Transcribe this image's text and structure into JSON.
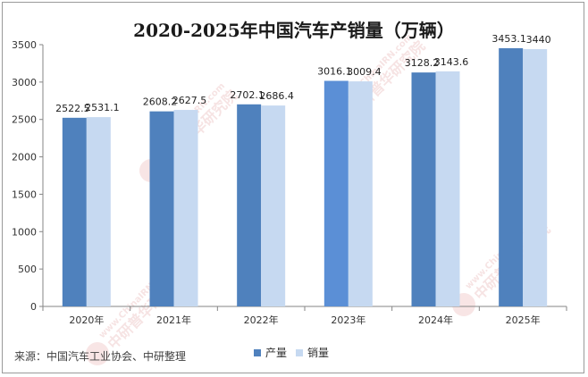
{
  "chart_data": {
    "type": "bar",
    "title": "2020-2025年中国汽车产销量（万辆）",
    "categories": [
      "2020年",
      "2021年",
      "2022年",
      "2023年",
      "2024年",
      "2025年"
    ],
    "series": [
      {
        "name": "产量",
        "values": [
          2522.5,
          2608.2,
          2702.1,
          3016.1,
          3128.2,
          3453.1
        ],
        "color": "#4f81bd"
      },
      {
        "name": "销量",
        "values": [
          2531.1,
          2627.5,
          2686.4,
          3009.4,
          3143.6,
          3440
        ],
        "color": "#c6d9f1"
      }
    ],
    "highlight_color": "#5b8fd6",
    "xlabel": "",
    "ylabel": "",
    "ylim": [
      0,
      3500
    ],
    "yticks": [
      0,
      500,
      1000,
      1500,
      2000,
      2500,
      3000,
      3500
    ],
    "grid": false,
    "legend": "bottom"
  },
  "source": "来源：中国汽车工业协会、中研整理",
  "watermark": {
    "brand": "www.ChinaIRN.com",
    "name": "中研普华研究院",
    "logo": "CIRN"
  }
}
